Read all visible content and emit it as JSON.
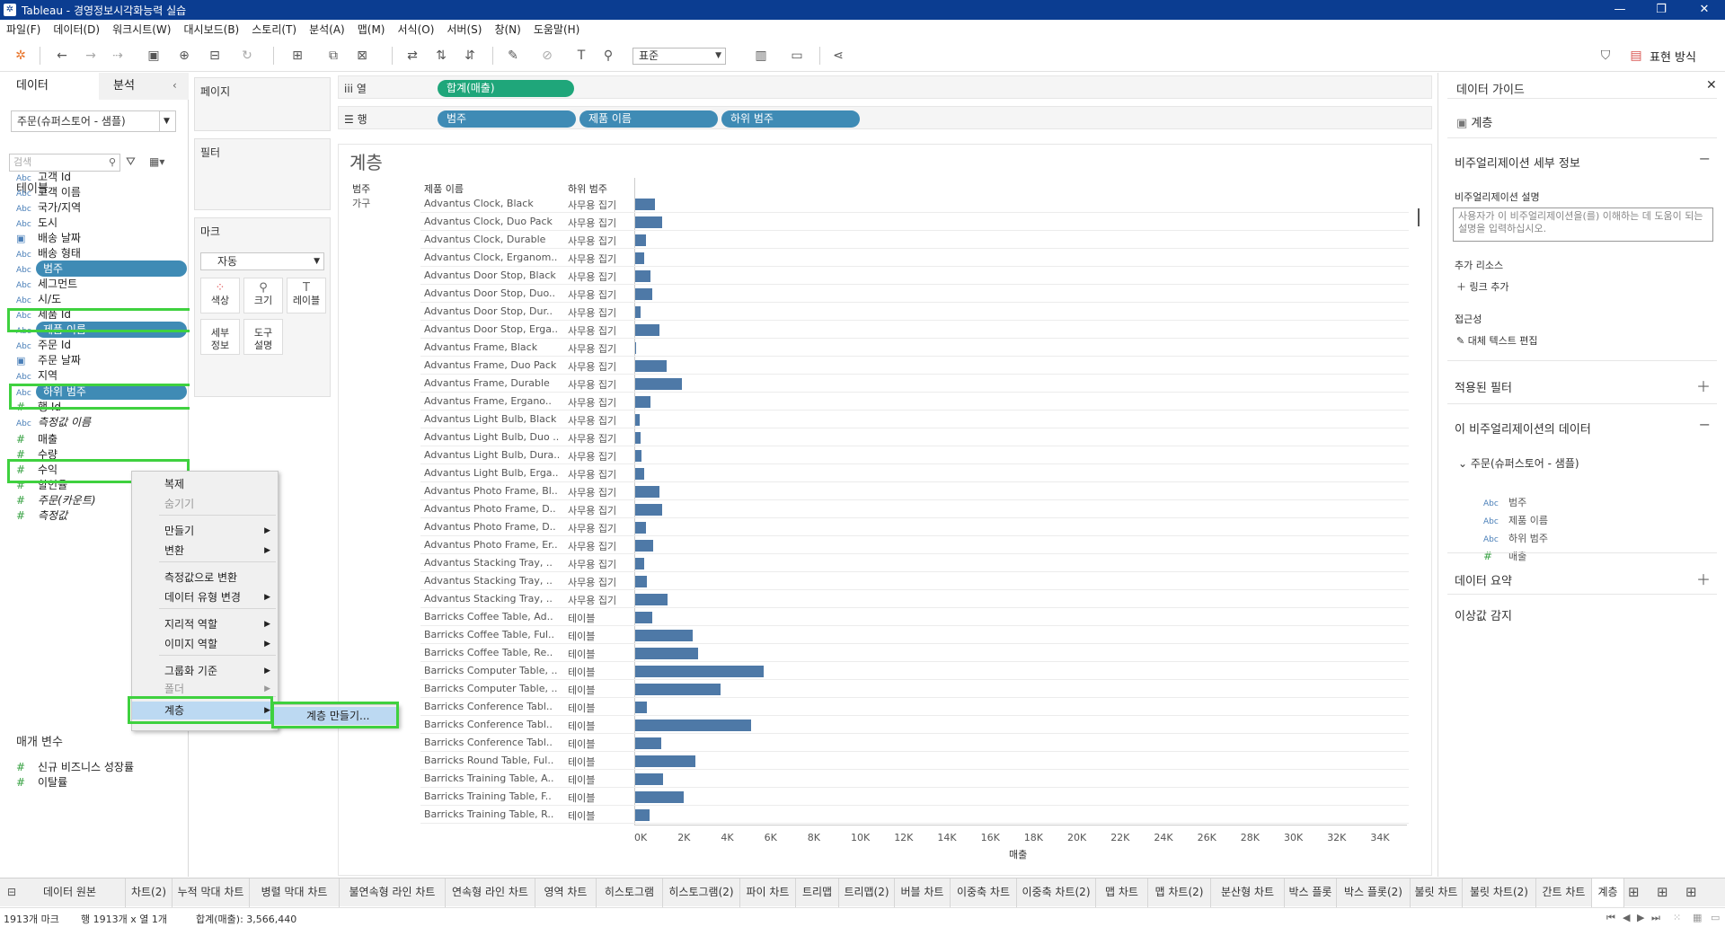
{
  "window": {
    "title": "Tableau - 경영정보시각화능력 실습"
  },
  "menu": [
    "파일(F)",
    "데이터(D)",
    "워크시트(W)",
    "대시보드(B)",
    "스토리(T)",
    "분석(A)",
    "맵(M)",
    "서식(O)",
    "서버(S)",
    "창(N)",
    "도움말(H)"
  ],
  "toolbar": {
    "fit": "표준",
    "show_me": "표현 방식"
  },
  "data_pane": {
    "tab_data": "데이터",
    "tab_analysis": "분석",
    "datasource": "주문(슈퍼스토어 - 샘플)",
    "search_placeholder": "검색",
    "tables_title": "테이블",
    "fields": [
      {
        "type": "Abc",
        "name": "고객 Id"
      },
      {
        "type": "Abc",
        "name": "고객 이름"
      },
      {
        "type": "Abc",
        "name": "국가/지역"
      },
      {
        "type": "Abc",
        "name": "도시"
      },
      {
        "type": "date",
        "name": "배송 날짜"
      },
      {
        "type": "Abc",
        "name": "배송 형태"
      },
      {
        "type": "Abc",
        "name": "범주"
      },
      {
        "type": "Abc",
        "name": "세그먼트"
      },
      {
        "type": "Abc",
        "name": "시/도"
      },
      {
        "type": "Abc",
        "name": "제품 Id"
      },
      {
        "type": "Abc",
        "name": "제품 이름"
      },
      {
        "type": "Abc",
        "name": "주문 Id"
      },
      {
        "type": "date",
        "name": "주문 날짜"
      },
      {
        "type": "Abc",
        "name": "지역"
      },
      {
        "type": "Abc",
        "name": "하위 범주"
      },
      {
        "type": "#",
        "name": "행 Id"
      },
      {
        "type": "Abc",
        "name": "측정값 이름"
      },
      {
        "type": "#",
        "name": "매출"
      },
      {
        "type": "#",
        "name": "수량"
      },
      {
        "type": "#",
        "name": "수익"
      },
      {
        "type": "#",
        "name": "할인율"
      },
      {
        "type": "#",
        "name": "주문(카운트)"
      },
      {
        "type": "#",
        "name": "측정값"
      }
    ],
    "params_title": "매개 변수",
    "params": [
      {
        "type": "#",
        "name": "신규 비즈니스 성장률"
      },
      {
        "type": "#",
        "name": "이탈률"
      }
    ]
  },
  "cards": {
    "pages": "페이지",
    "filters": "필터",
    "marks": "마크",
    "marks_type": "자동",
    "mark_buttons": [
      "색상",
      "크기",
      "레이블",
      "세부\n정보",
      "도구\n설명"
    ]
  },
  "shelves": {
    "columns_label": "열",
    "rows_label": "행",
    "columns": [
      "합계(매출)"
    ],
    "rows": [
      "범주",
      "제품 이름",
      "하위 범주"
    ]
  },
  "view": {
    "title": "계층",
    "headers": [
      "범주",
      "제품 이름",
      "하위 범주"
    ],
    "category": "가구",
    "xaxis_title": "매출",
    "xticks": [
      "0K",
      "2K",
      "4K",
      "6K",
      "8K",
      "10K",
      "12K",
      "14K",
      "16K",
      "18K",
      "20K",
      "22K",
      "24K",
      "26K",
      "28K",
      "30K",
      "32K",
      "34K"
    ]
  },
  "chart_data": {
    "type": "bar",
    "orientation": "horizontal",
    "xlabel": "매출",
    "xlim": [
      0,
      36000
    ],
    "rows": [
      {
        "product": "Advantus Clock, Black",
        "sub": "사무용 집기",
        "value": 900
      },
      {
        "product": "Advantus Clock, Duo Pack",
        "sub": "사무용 집기",
        "value": 1250
      },
      {
        "product": "Advantus Clock, Durable",
        "sub": "사무용 집기",
        "value": 500
      },
      {
        "product": "Advantus Clock, Erganom..",
        "sub": "사무용 집기",
        "value": 400
      },
      {
        "product": "Advantus Door Stop, Black",
        "sub": "사무용 집기",
        "value": 700
      },
      {
        "product": "Advantus Door Stop, Duo..",
        "sub": "사무용 집기",
        "value": 800
      },
      {
        "product": "Advantus Door Stop, Dur..",
        "sub": "사무용 집기",
        "value": 250
      },
      {
        "product": "Advantus Door Stop, Erga..",
        "sub": "사무용 집기",
        "value": 1100
      },
      {
        "product": "Advantus Frame, Black",
        "sub": "사무용 집기",
        "value": 50
      },
      {
        "product": "Advantus Frame, Duo Pack",
        "sub": "사무용 집기",
        "value": 1450
      },
      {
        "product": "Advantus Frame, Durable",
        "sub": "사무용 집기",
        "value": 2150
      },
      {
        "product": "Advantus Frame, Ergano..",
        "sub": "사무용 집기",
        "value": 700
      },
      {
        "product": "Advantus Light Bulb, Black",
        "sub": "사무용 집기",
        "value": 200
      },
      {
        "product": "Advantus Light Bulb, Duo ..",
        "sub": "사무용 집기",
        "value": 250
      },
      {
        "product": "Advantus Light Bulb, Dura..",
        "sub": "사무용 집기",
        "value": 300
      },
      {
        "product": "Advantus Light Bulb, Erga..",
        "sub": "사무용 집기",
        "value": 400
      },
      {
        "product": "Advantus Photo Frame, Bl..",
        "sub": "사무용 집기",
        "value": 1100
      },
      {
        "product": "Advantus Photo Frame, D..",
        "sub": "사무용 집기",
        "value": 1250
      },
      {
        "product": "Advantus Photo Frame, D..",
        "sub": "사무용 집기",
        "value": 500
      },
      {
        "product": "Advantus Photo Frame, Er..",
        "sub": "사무용 집기",
        "value": 850
      },
      {
        "product": "Advantus Stacking Tray, ..",
        "sub": "사무용 집기",
        "value": 400
      },
      {
        "product": "Advantus Stacking Tray, ..",
        "sub": "사무용 집기",
        "value": 550
      },
      {
        "product": "Advantus Stacking Tray, ..",
        "sub": "사무용 집기",
        "value": 1500
      },
      {
        "product": "Barricks Coffee Table, Ad..",
        "sub": "테이블",
        "value": 800
      },
      {
        "product": "Barricks Coffee Table, Ful..",
        "sub": "테이블",
        "value": 2650
      },
      {
        "product": "Barricks Coffee Table, Re..",
        "sub": "테이블",
        "value": 2900
      },
      {
        "product": "Barricks Computer Table, ..",
        "sub": "테이블",
        "value": 5950
      },
      {
        "product": "Barricks Computer Table, ..",
        "sub": "테이블",
        "value": 3950
      },
      {
        "product": "Barricks Conference Tabl..",
        "sub": "테이블",
        "value": 550
      },
      {
        "product": "Barricks Conference Tabl..",
        "sub": "테이블",
        "value": 5350
      },
      {
        "product": "Barricks Conference Tabl..",
        "sub": "테이블",
        "value": 1200
      },
      {
        "product": "Barricks Round Table, Ful..",
        "sub": "테이블",
        "value": 2800
      },
      {
        "product": "Barricks Training Table, A..",
        "sub": "테이블",
        "value": 1300
      },
      {
        "product": "Barricks Training Table, F..",
        "sub": "테이블",
        "value": 2250
      },
      {
        "product": "Barricks Training Table, R..",
        "sub": "테이블",
        "value": 650
      }
    ]
  },
  "context_menu": {
    "items": [
      "복제",
      "숨기기",
      "만들기",
      "변환",
      "측정값으로 변환",
      "데이터 유형 변경",
      "지리적 역할",
      "이미지 역할",
      "그룹화 기준",
      "폴더",
      "계층"
    ],
    "submenu_item": "계층 만들기..."
  },
  "guide": {
    "title": "데이터 가이드",
    "viz_name": "계층",
    "details_title": "비주얼리제이션 세부 정보",
    "desc_label": "비주얼리제이션 설명",
    "desc_placeholder": "사용자가 이 비주얼리제이션을(를) 이해하는 데 도움이 되는 설명을 입력하십시오.",
    "resources_label": "추가 리소스",
    "add_link": "링크 추가",
    "accessibility_label": "접근성",
    "alt_text": "대체 텍스트 편집",
    "filters_title": "적용된 필터",
    "data_title": "이 비주얼리제이션의 데이터",
    "data_source": "주문(슈퍼스토어 - 샘플)",
    "data_fields": [
      {
        "type": "Abc",
        "name": "범주"
      },
      {
        "type": "Abc",
        "name": "제품 이름"
      },
      {
        "type": "Abc",
        "name": "하위 범주"
      },
      {
        "type": "#",
        "name": "매출"
      }
    ],
    "summary_title": "데이터 요약",
    "outlier_title": "이상값 감지"
  },
  "sheet_tabs": [
    "데이터 원본",
    "차트(2)",
    "누적 막대 차트",
    "병렬 막대 차트",
    "불연속형 라인 차트",
    "연속형 라인 차트",
    "영역 차트",
    "히스토그램",
    "히스토그램(2)",
    "파이 차트",
    "트리맵",
    "트리맵(2)",
    "버블 차트",
    "이중축 차트",
    "이중축 차트(2)",
    "맵 차트",
    "맵 차트(2)",
    "분산형 차트",
    "박스 플롯",
    "박스 플롯(2)",
    "불릿 차트",
    "불릿 차트(2)",
    "간트 차트",
    "계층"
  ],
  "status": {
    "marks": "1913개 마크",
    "rows_cols": "행 1913개 x 열 1개",
    "sum": "합계(매출): 3,566,440"
  }
}
